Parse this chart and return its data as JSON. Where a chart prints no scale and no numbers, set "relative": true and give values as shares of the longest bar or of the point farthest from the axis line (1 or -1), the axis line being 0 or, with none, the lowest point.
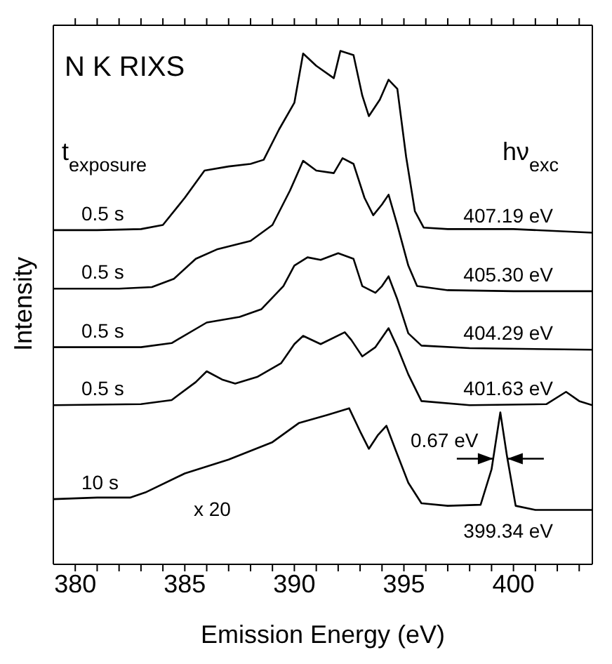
{
  "chart_data": {
    "type": "line",
    "relative": true,
    "xlabel": "Emission Energy (eV)",
    "ylabel": "Intensity",
    "xlim": [
      379,
      403.6
    ],
    "xticks": [
      380,
      {
        "value": 381,
        "label": null
      },
      {
        "value": 382,
        "label": null
      },
      {
        "value": 383,
        "label": null
      },
      {
        "value": 384,
        "label": null
      },
      385,
      {
        "value": 386,
        "label": null
      },
      {
        "value": 387,
        "label": null
      },
      {
        "value": 388,
        "label": null
      },
      {
        "value": 389,
        "label": null
      },
      390,
      {
        "value": 391,
        "label": null
      },
      {
        "value": 392,
        "label": null
      },
      {
        "value": 393,
        "label": null
      },
      {
        "value": 394,
        "label": null
      },
      395,
      {
        "value": 396,
        "label": null
      },
      {
        "value": 397,
        "label": null
      },
      {
        "value": 398,
        "label": null
      },
      {
        "value": 399,
        "label": null
      },
      400,
      {
        "value": 401,
        "label": null
      },
      {
        "value": 402,
        "label": null
      },
      {
        "value": 403,
        "label": null
      }
    ],
    "annotations": [
      "N K RIXS",
      "t$_{exposure}$",
      "hν$_{exc}$",
      "0.5 s",
      "0.5 s",
      "0.5 s",
      "0.5 s",
      "10 s",
      "x 20",
      "0.67 eV"
    ],
    "series": [
      {
        "name": "407.19 eV",
        "color": "#000000",
        "x": [
          379,
          381,
          383,
          384,
          385,
          385.9,
          387,
          388,
          388.6,
          389.3,
          390,
          390.4,
          391,
          391.8,
          392.1,
          392.7,
          393.1,
          393.4,
          393.9,
          394.3,
          394.7,
          395.1,
          395.5,
          395.9,
          397,
          400,
          403.6
        ],
        "values": [
          0.651,
          0.651,
          0.653,
          0.661,
          0.714,
          0.767,
          0.775,
          0.78,
          0.788,
          0.847,
          0.899,
          0.995,
          0.971,
          0.947,
          1.0,
          0.992,
          0.913,
          0.873,
          0.905,
          0.944,
          0.926,
          0.794,
          0.688,
          0.656,
          0.653,
          0.653,
          0.646
        ]
      },
      {
        "name": "405.30 eV",
        "color": "#000000",
        "x": [
          379,
          382,
          383.5,
          384.5,
          385.5,
          386.5,
          388,
          389,
          389.8,
          390.4,
          391,
          391.8,
          392.2,
          392.7,
          393.2,
          393.6,
          394,
          394.3,
          394.7,
          395.2,
          395.6,
          397,
          400,
          403.6
        ],
        "values": [
          0.537,
          0.537,
          0.54,
          0.556,
          0.595,
          0.614,
          0.63,
          0.661,
          0.728,
          0.786,
          0.767,
          0.762,
          0.791,
          0.78,
          0.714,
          0.68,
          0.701,
          0.72,
          0.661,
          0.582,
          0.542,
          0.534,
          0.532,
          0.532
        ]
      },
      {
        "name": "404.29 eV",
        "color": "#000000",
        "x": [
          379,
          383,
          384.4,
          386,
          387.5,
          388.5,
          389.5,
          390,
          390.6,
          391.2,
          392,
          392.7,
          393.1,
          393.7,
          394,
          394.3,
          394.7,
          395.2,
          395.8,
          398,
          403.6
        ],
        "values": [
          0.423,
          0.423,
          0.431,
          0.471,
          0.482,
          0.497,
          0.542,
          0.582,
          0.598,
          0.593,
          0.606,
          0.595,
          0.542,
          0.529,
          0.542,
          0.561,
          0.516,
          0.45,
          0.426,
          0.421,
          0.418
        ]
      },
      {
        "name": "401.63 eV",
        "color": "#000000",
        "x": [
          379,
          383,
          384.4,
          385.5,
          386,
          386.7,
          387.3,
          388.3,
          389.4,
          390,
          390.4,
          391.2,
          392.3,
          392.6,
          393.1,
          393.7,
          394.3,
          394.7,
          395.2,
          395.8,
          398,
          401.5,
          402.4,
          403,
          403.6
        ],
        "values": [
          0.31,
          0.312,
          0.32,
          0.355,
          0.376,
          0.36,
          0.352,
          0.365,
          0.392,
          0.429,
          0.445,
          0.429,
          0.452,
          0.437,
          0.405,
          0.423,
          0.46,
          0.423,
          0.37,
          0.318,
          0.31,
          0.312,
          0.336,
          0.318,
          0.31
        ]
      },
      {
        "name": "399.34 eV",
        "color": "#000000",
        "x": [
          379,
          381,
          382.5,
          383.2,
          385,
          387,
          389,
          390.2,
          391.5,
          392.5,
          393,
          393.4,
          393.8,
          394.2,
          394.6,
          395.2,
          395.8,
          397,
          398.5,
          399,
          399.4,
          399.7,
          400.1,
          401,
          403.6
        ],
        "values": [
          0.127,
          0.13,
          0.13,
          0.14,
          0.177,
          0.204,
          0.238,
          0.275,
          0.291,
          0.304,
          0.259,
          0.225,
          0.251,
          0.27,
          0.225,
          0.159,
          0.119,
          0.114,
          0.116,
          0.185,
          0.296,
          0.212,
          0.114,
          0.106,
          0.106
        ]
      }
    ]
  }
}
